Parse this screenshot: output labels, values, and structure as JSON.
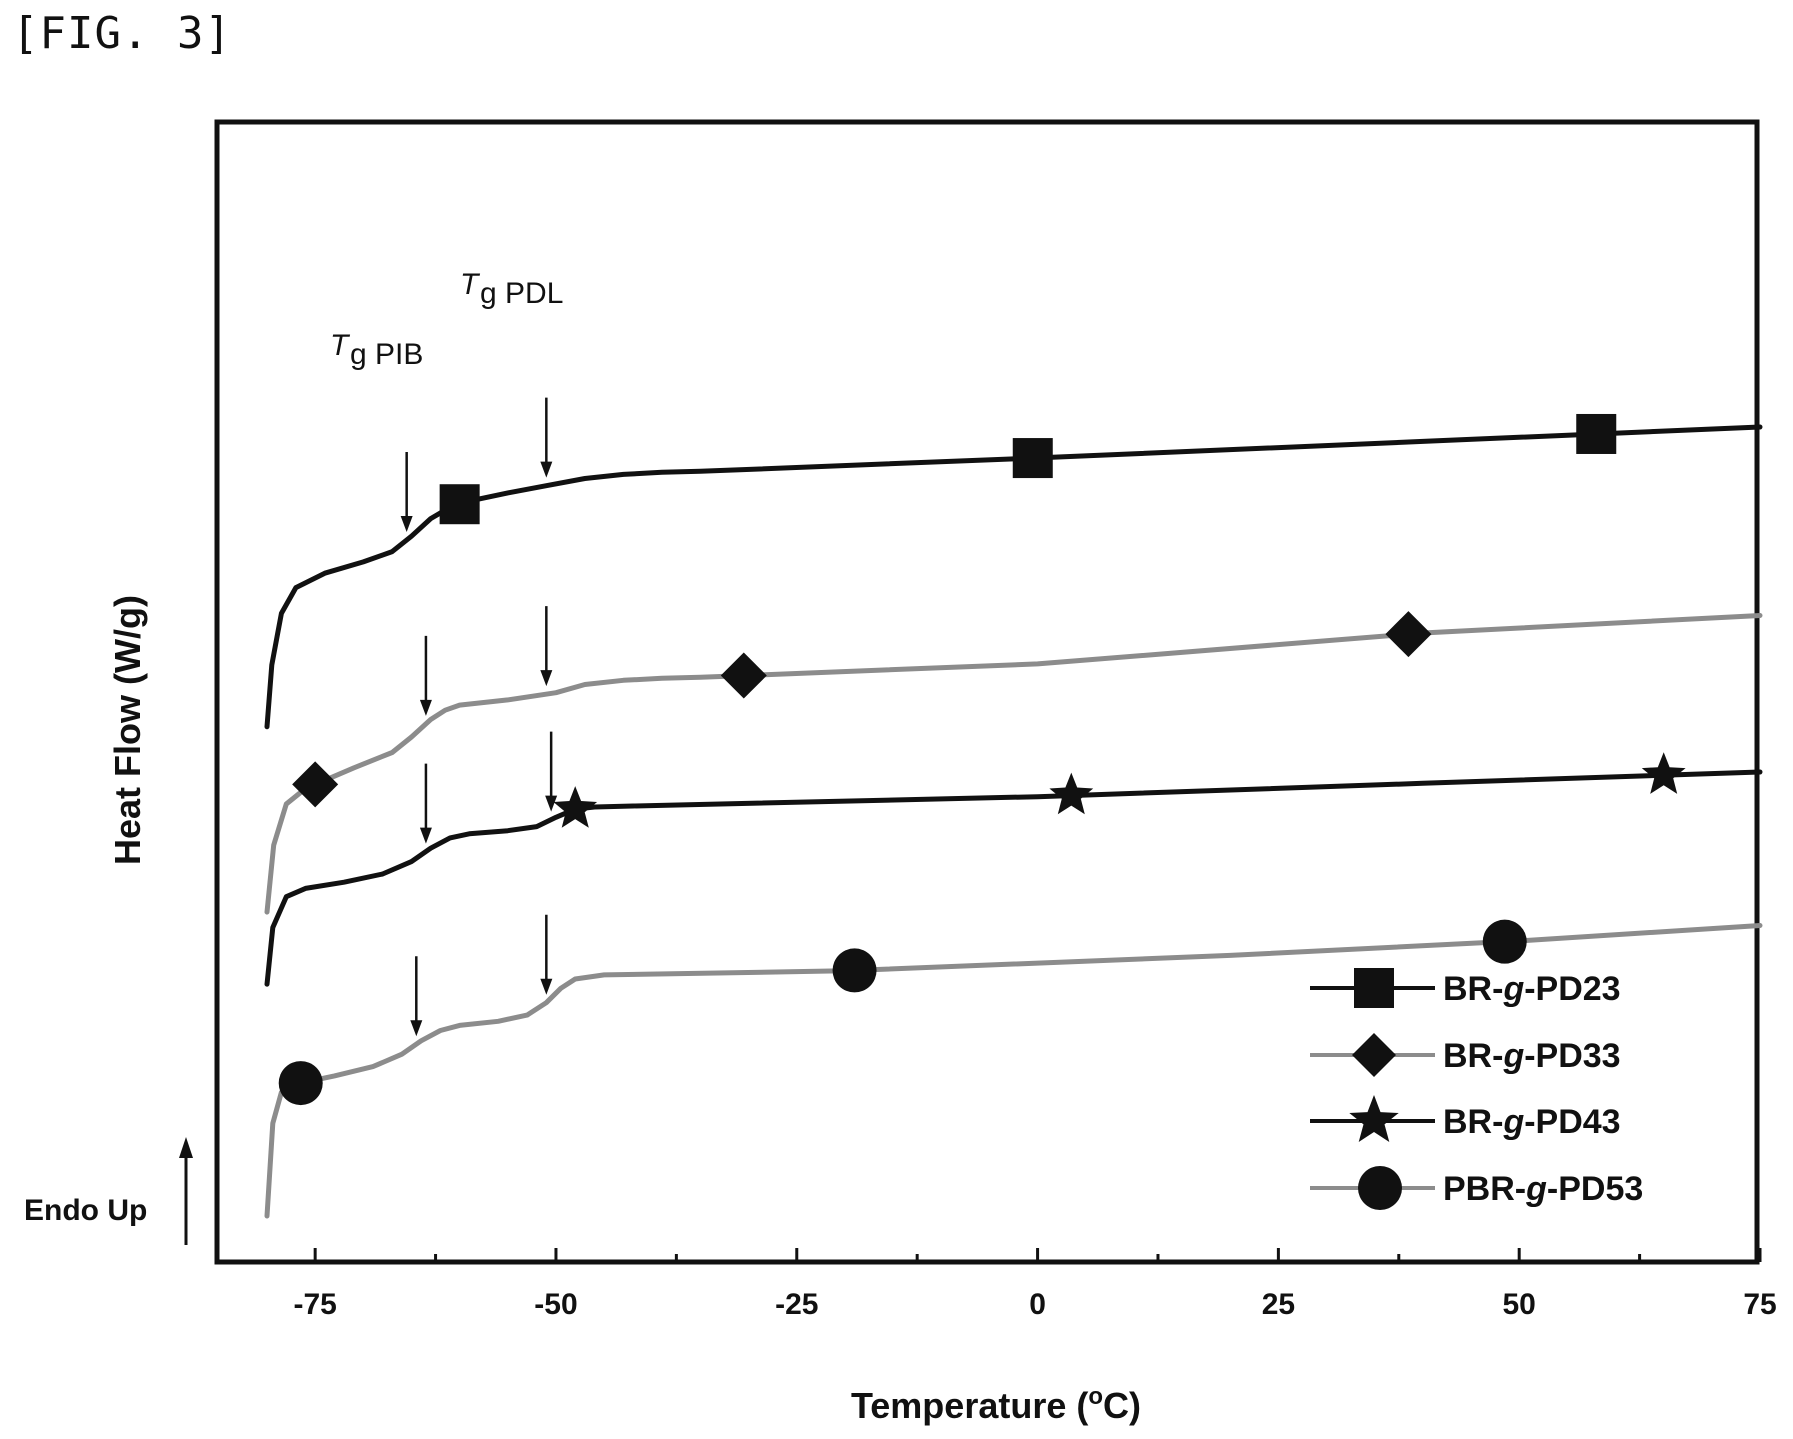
{
  "figure_label": "[FIG. 3]",
  "endo_label": "Endo Up",
  "annotations": {
    "tg_pib": {
      "main": "T",
      "sub": "g PIB"
    },
    "tg_pdl": {
      "main": "T",
      "sub": "g PDL"
    }
  },
  "colors": {
    "black": "#111111",
    "gray": "#8c8c8c"
  },
  "chart_data": {
    "type": "line",
    "title": "",
    "xlabel": "Temperature (°C)",
    "xlabel_parts": {
      "pre": "Temperature (",
      "sup": "o",
      "post": "C)"
    },
    "ylabel": "Heat Flow (W/g)",
    "xlim": [
      -80,
      75
    ],
    "ylim": [
      0,
      100
    ],
    "xticks": [
      -75,
      -50,
      -25,
      0,
      25,
      50,
      75
    ],
    "x_minor_ticks": [
      -62.5,
      -37.5,
      -12.5,
      12.5,
      37.5,
      62.5
    ],
    "grid": false,
    "y_ticks_labeled": false,
    "legend_position": "bottom-right",
    "series": [
      {
        "name": "BR-g-PD23",
        "name_parts": [
          "BR-",
          "g",
          "-PD23"
        ],
        "color": "black",
        "marker": "square",
        "x": [
          -80,
          -79.5,
          -78.5,
          -77,
          -74,
          -70,
          -67,
          -65,
          -63,
          -61,
          -59,
          -55,
          -51,
          -47,
          -43,
          -39,
          -35,
          0,
          40,
          75
        ],
        "y": [
          51,
          57,
          62,
          64.5,
          65.9,
          67,
          68,
          69.5,
          71.2,
          72.3,
          72.9,
          73.7,
          74.4,
          75.1,
          75.5,
          75.7,
          75.8,
          77.1,
          78.7,
          80.1
        ],
        "marker_x": [
          -60,
          -0.5,
          58
        ]
      },
      {
        "name": "BR-g-PD33",
        "name_parts": [
          "BR-",
          "g",
          "-PD33"
        ],
        "color": "gray",
        "marker": "diamond",
        "x": [
          -80,
          -79.3,
          -78,
          -76,
          -74,
          -71,
          -67,
          -65,
          -63,
          -61.5,
          -60,
          -55,
          -50,
          -47,
          -43,
          -39,
          -35,
          0,
          40,
          75
        ],
        "y": [
          33,
          39.5,
          43.5,
          45,
          45.8,
          47,
          48.5,
          50,
          51.7,
          52.6,
          53.1,
          53.6,
          54.3,
          55.1,
          55.5,
          55.7,
          55.8,
          57.1,
          60.1,
          61.8
        ],
        "marker_x": [
          -75,
          -30.5,
          38.5
        ]
      },
      {
        "name": "BR-g-PD43",
        "name_parts": [
          "BR-",
          "g",
          "-PD43"
        ],
        "color": "black",
        "marker": "star",
        "x": [
          -80,
          -79.4,
          -78,
          -76,
          -72,
          -68,
          -65,
          -63,
          -61,
          -59,
          -55,
          -52,
          -50,
          -48,
          -46,
          -42,
          0,
          40,
          75
        ],
        "y": [
          26,
          31.5,
          34.5,
          35.3,
          35.9,
          36.7,
          37.9,
          39.2,
          40.2,
          40.6,
          40.9,
          41.3,
          42.2,
          43,
          43.2,
          43.3,
          44.2,
          45.5,
          46.6
        ],
        "marker_x": [
          -48,
          3.5,
          65
        ]
      },
      {
        "name": "PBR-g-PD53",
        "name_parts": [
          "PBR-",
          "g",
          "-PD53"
        ],
        "color": "gray",
        "marker": "circle",
        "x": [
          -80,
          -79.4,
          -78.5,
          -77,
          -73,
          -69,
          -66,
          -64,
          -62,
          -60,
          -56,
          -53,
          -51,
          -49.5,
          -48,
          -45,
          -20,
          20,
          50,
          75
        ],
        "y": [
          3.5,
          12.5,
          15.5,
          16.3,
          17.1,
          18,
          19.2,
          20.5,
          21.5,
          22,
          22.4,
          23,
          24.2,
          25.6,
          26.5,
          26.9,
          27.3,
          28.8,
          30.2,
          31.7
        ],
        "marker_x": [
          -76.5,
          -19,
          48.5
        ]
      }
    ],
    "tg_arrows": [
      {
        "series": "BR-g-PD23",
        "x": [
          -65.5,
          -51
        ]
      },
      {
        "series": "BR-g-PD33",
        "x": [
          -63.5,
          -51
        ]
      },
      {
        "series": "BR-g-PD43",
        "x": [
          -63.5,
          -50.5
        ]
      },
      {
        "series": "PBR-g-PD53",
        "x": [
          -64.5,
          -51
        ]
      }
    ]
  }
}
